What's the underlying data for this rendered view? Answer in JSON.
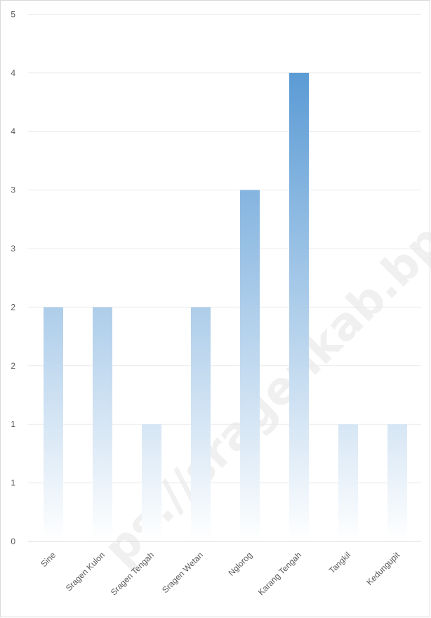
{
  "watermark": "ps://sragenkab.bps.go.id",
  "colors": {
    "bar": "#5b9bd5",
    "bar_fade": "#ffffff",
    "grid": "#ececec",
    "axis": "#d9d9d9",
    "text": "#595959"
  },
  "chart_data": {
    "type": "bar",
    "title": "",
    "xlabel": "",
    "ylabel": "",
    "categories": [
      "Sine",
      "Sragen Kulon",
      "Sragen Tengah",
      "Sragen Wetan",
      "Nglorog",
      "Karang Tengah",
      "Tangkil",
      "Kedungupit"
    ],
    "values": [
      2,
      2,
      1,
      2,
      3,
      4,
      1,
      1
    ],
    "ylim": [
      0,
      4
    ],
    "y_ticks": [
      0,
      0.5,
      1,
      1.5,
      2,
      2.5,
      3,
      3.5,
      4
    ],
    "y_tick_labels": [
      "0",
      "1",
      "1",
      "2",
      "2",
      "3",
      "3",
      "4",
      "4"
    ],
    "y_top_label": "5",
    "grid": true,
    "legend": "none"
  }
}
